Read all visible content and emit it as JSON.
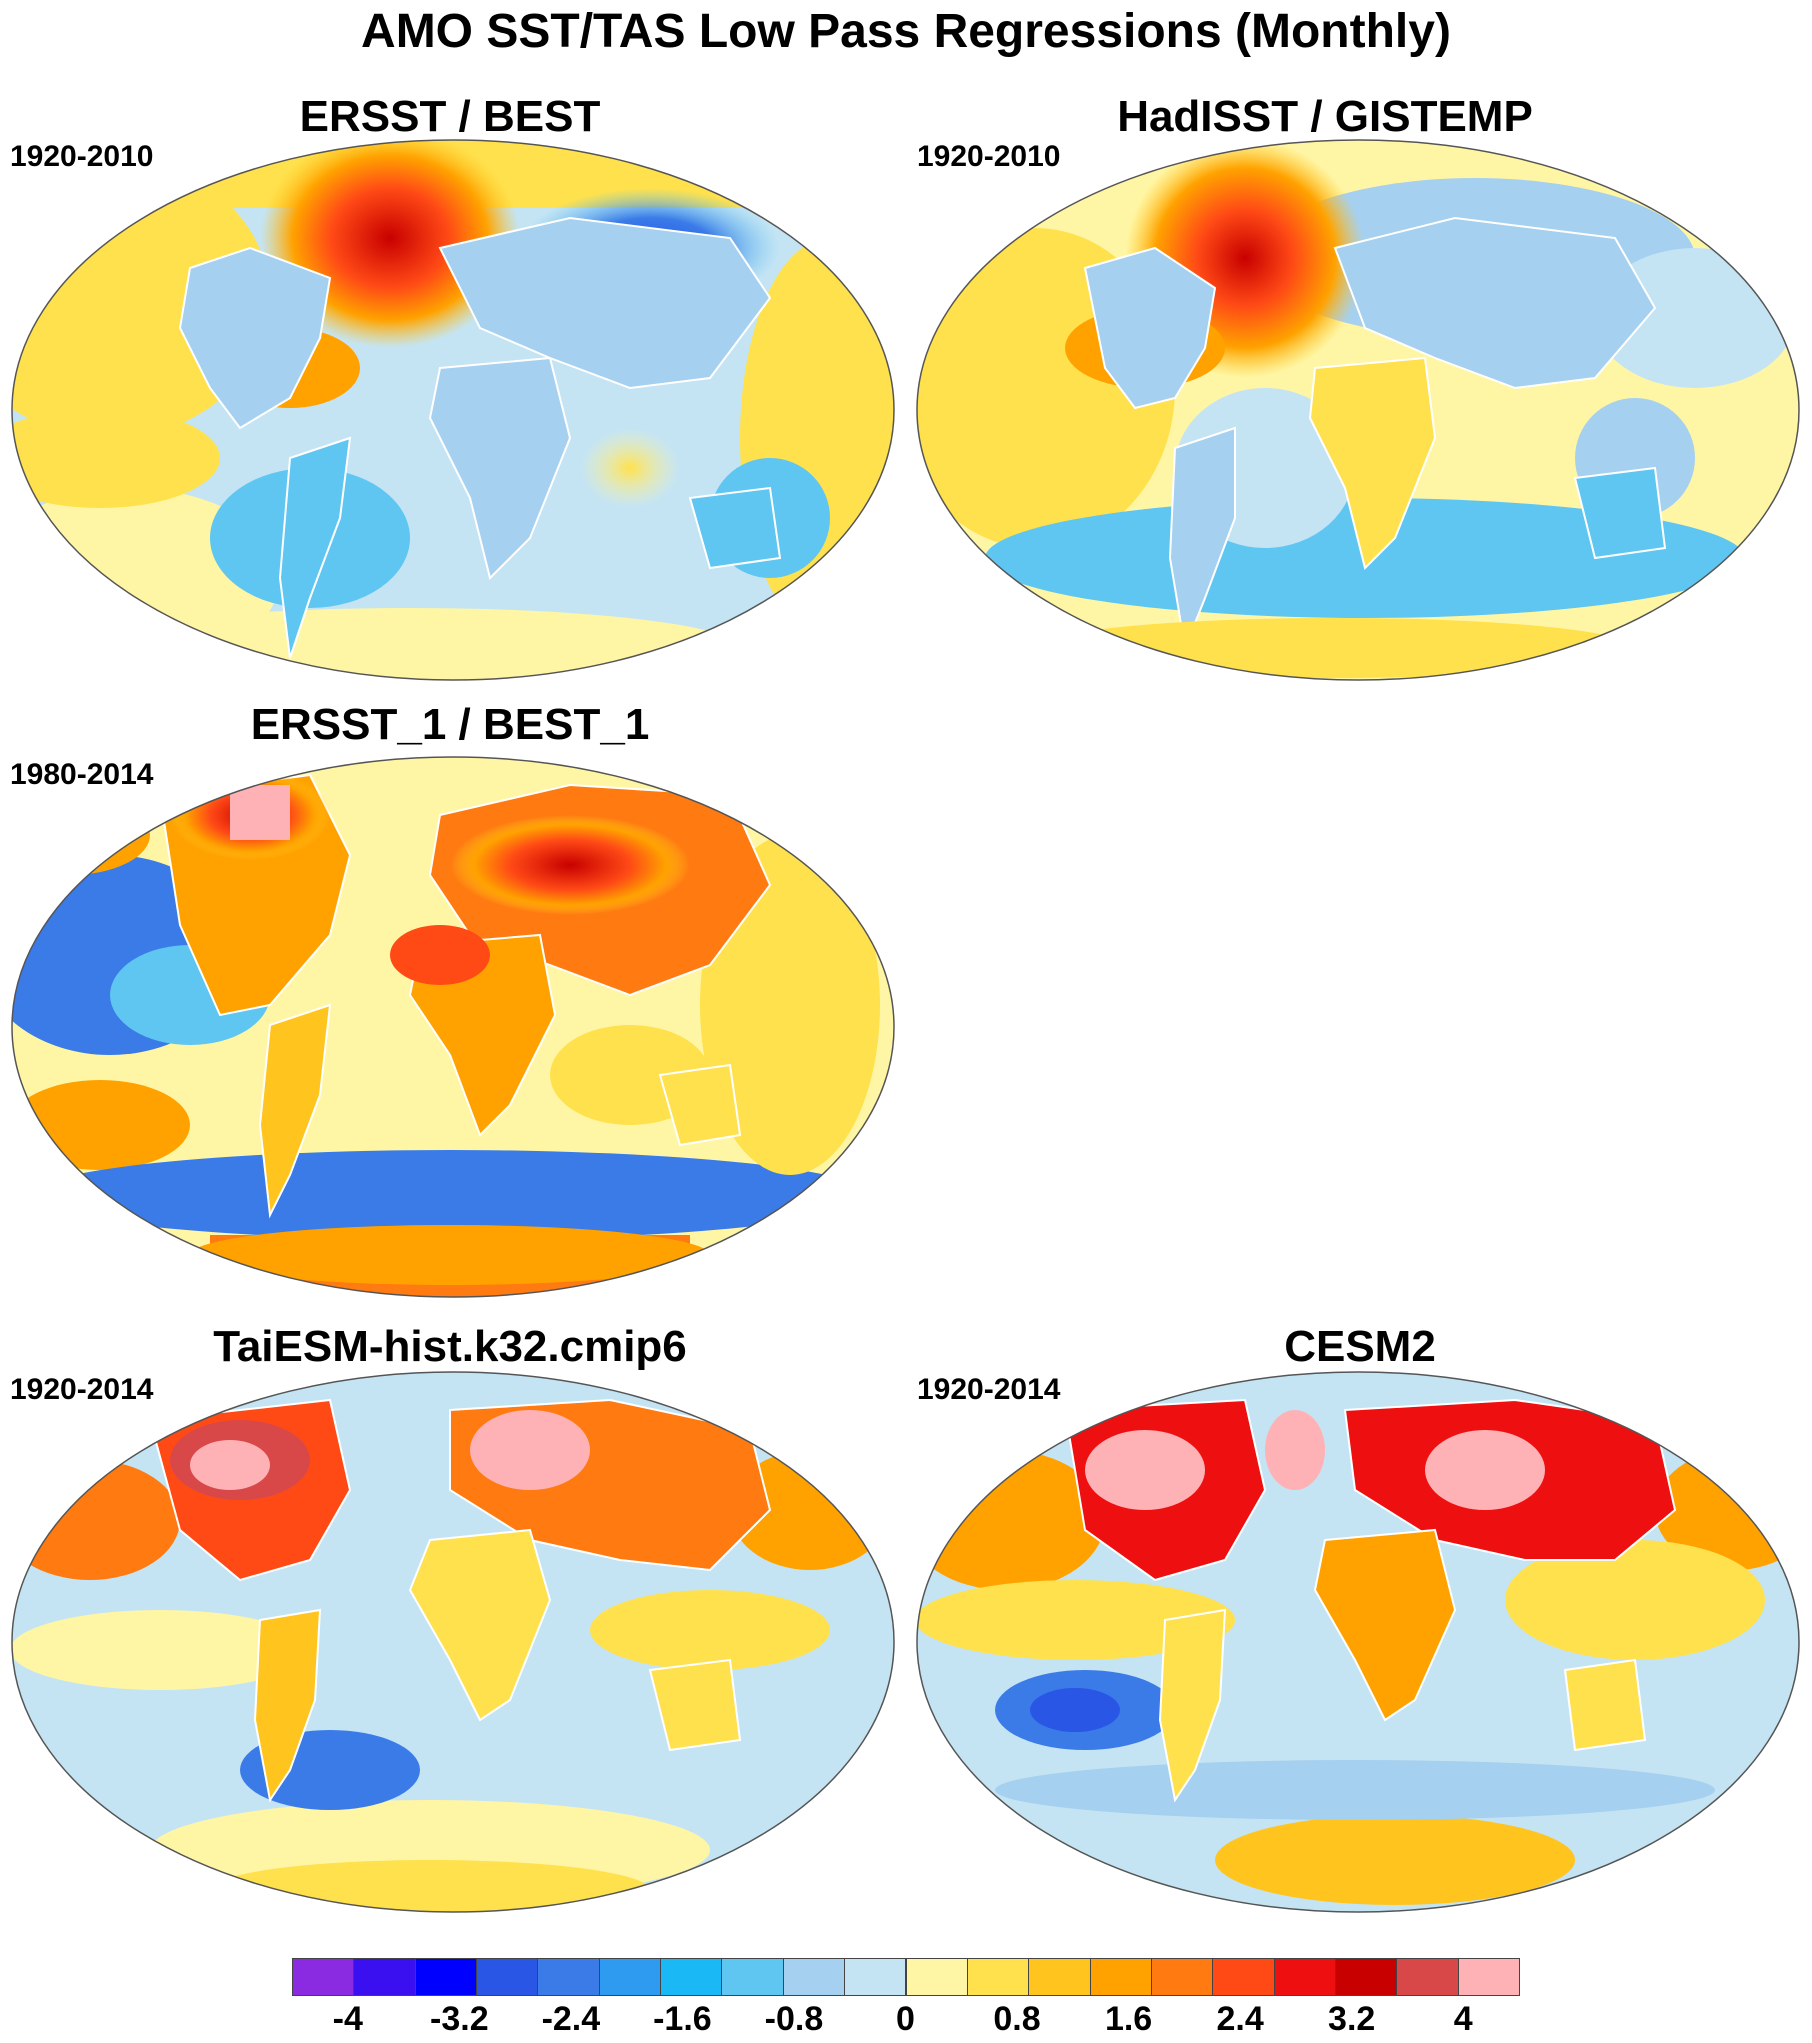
{
  "title": "AMO SST/TAS Low Pass Regressions (Monthly)",
  "panels": [
    {
      "title": "ERSST / BEST",
      "period": "1920-2010"
    },
    {
      "title": "HadISST / GISTEMP",
      "period": "1920-2010"
    },
    {
      "title": "ERSST_1 / BEST_1",
      "period": "1980-2014"
    },
    {
      "title": "TaiESM-hist.k32.cmip6",
      "period": "1920-2014"
    },
    {
      "title": "CESM2",
      "period": "1920-2014"
    }
  ],
  "colorbar": {
    "colors": [
      "#8a2be2",
      "#3b10f0",
      "#0000ff",
      "#2a56e6",
      "#3a7be8",
      "#2f9bf0",
      "#1ab8f5",
      "#5fc6f2",
      "#a6d0ef",
      "#c4e4f4",
      "#fff6a5",
      "#ffe14d",
      "#ffc41d",
      "#ffa200",
      "#ff7a10",
      "#ff4a16",
      "#ee1010",
      "#c80000",
      "#d94848",
      "#ffb2b6"
    ],
    "tick_labels": [
      "-4",
      "-3.2",
      "-2.4",
      "-1.6",
      "-0.8",
      "0",
      "0.8",
      "1.6",
      "2.4",
      "3.2",
      "4"
    ],
    "tick_values": [
      -4,
      -3.2,
      -2.4,
      -1.6,
      -0.8,
      0,
      0.8,
      1.6,
      2.4,
      3.2,
      4
    ],
    "range": [
      -4.4,
      4.4
    ]
  }
}
